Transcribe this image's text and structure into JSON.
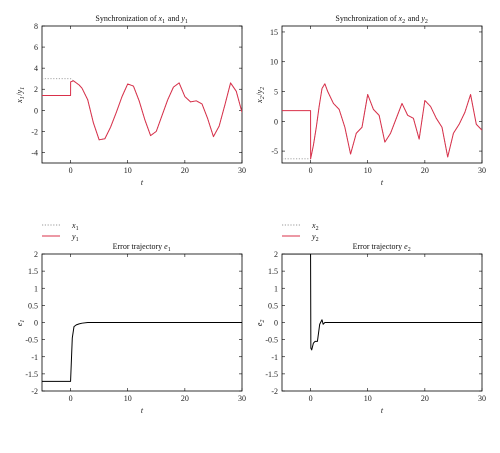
{
  "chart_data": [
    {
      "type": "line",
      "title": "Synchronization of x1 and y1",
      "xlabel": "t",
      "ylabel": "x1 / y1",
      "xlim": [
        -5,
        30
      ],
      "ylim": [
        -5,
        8
      ],
      "xticks": [
        0,
        10,
        20,
        30
      ],
      "yticks": [
        -4,
        -2,
        0,
        2,
        4,
        6,
        8
      ],
      "series": [
        {
          "name": "x1",
          "style": "dotted",
          "color": "#999999",
          "x": [
            -5,
            0,
            0.5,
            1,
            1.5,
            2,
            3,
            4,
            5,
            6,
            7,
            8,
            9,
            10,
            11,
            12,
            13,
            14,
            15,
            16,
            17,
            18,
            19,
            20,
            21,
            22,
            23,
            24,
            25,
            26,
            27,
            28,
            29,
            30
          ],
          "y": [
            3.0,
            3.0,
            2.8,
            2.6,
            2.4,
            2.1,
            1.0,
            -1.2,
            -2.8,
            -2.7,
            -1.6,
            -0.2,
            1.3,
            2.5,
            2.3,
            0.9,
            -0.9,
            -2.4,
            -2.0,
            -0.5,
            1.0,
            2.2,
            2.6,
            1.3,
            0.8,
            0.9,
            0.6,
            -0.8,
            -2.5,
            -1.5,
            0.5,
            2.6,
            1.8,
            -0.2
          ]
        },
        {
          "name": "y1",
          "style": "solid",
          "color": "#d9304a",
          "x": [
            -5,
            0,
            0.01,
            0.5,
            1,
            1.5,
            2,
            3,
            4,
            5,
            6,
            7,
            8,
            9,
            10,
            11,
            12,
            13,
            14,
            15,
            16,
            17,
            18,
            19,
            20,
            21,
            22,
            23,
            24,
            25,
            26,
            27,
            28,
            29,
            30
          ],
          "y": [
            1.4,
            1.4,
            2.7,
            2.8,
            2.6,
            2.4,
            2.1,
            1.0,
            -1.2,
            -2.8,
            -2.7,
            -1.6,
            -0.2,
            1.3,
            2.5,
            2.3,
            0.9,
            -0.9,
            -2.4,
            -2.0,
            -0.5,
            1.0,
            2.2,
            2.6,
            1.3,
            0.8,
            0.9,
            0.6,
            -0.8,
            -2.5,
            -1.5,
            0.5,
            2.6,
            1.8,
            -0.2
          ]
        }
      ]
    },
    {
      "type": "line",
      "title": "Synchronization of x2 and y2",
      "xlabel": "t",
      "ylabel": "x2 / y2",
      "xlim": [
        -5,
        30
      ],
      "ylim": [
        -7,
        16
      ],
      "xticks": [
        0,
        10,
        20,
        30
      ],
      "yticks": [
        -5,
        0,
        5,
        10,
        15
      ],
      "series": [
        {
          "name": "x2",
          "style": "dotted",
          "color": "#999999",
          "x": [
            -5,
            0,
            0.5,
            1,
            1.5,
            2,
            2.5,
            3,
            4,
            5,
            6,
            7,
            8,
            9,
            10,
            11,
            12,
            13,
            14,
            15,
            16,
            17,
            18,
            19,
            20,
            21,
            22,
            23,
            24,
            25,
            26,
            27,
            28,
            29,
            30
          ],
          "y": [
            -6.3,
            -6.3,
            -4.0,
            -1.0,
            2.5,
            5.5,
            6.3,
            5.0,
            3.0,
            2.0,
            -1.0,
            -5.5,
            -2.0,
            -1.0,
            4.5,
            2.0,
            1.0,
            -3.5,
            -2.0,
            0.5,
            3.0,
            1.0,
            0.5,
            -3.0,
            3.5,
            2.5,
            0.5,
            -1.0,
            -6.0,
            -2.0,
            -0.5,
            1.5,
            4.5,
            -0.5,
            -1.5
          ]
        },
        {
          "name": "y2",
          "style": "solid",
          "color": "#d9304a",
          "x": [
            -5,
            0,
            0.01,
            0.5,
            1,
            1.5,
            2,
            2.5,
            3,
            4,
            5,
            6,
            7,
            8,
            9,
            10,
            11,
            12,
            13,
            14,
            15,
            16,
            17,
            18,
            19,
            20,
            21,
            22,
            23,
            24,
            25,
            26,
            27,
            28,
            29,
            30
          ],
          "y": [
            1.8,
            1.8,
            -6.3,
            -4.0,
            -1.0,
            2.5,
            5.5,
            6.3,
            5.0,
            3.0,
            2.0,
            -1.0,
            -5.5,
            -2.0,
            -1.0,
            4.5,
            2.0,
            1.0,
            -3.5,
            -2.0,
            0.5,
            3.0,
            1.0,
            0.5,
            -3.0,
            3.5,
            2.5,
            0.5,
            -1.0,
            -6.0,
            -2.0,
            -0.5,
            1.5,
            4.5,
            -0.5,
            -1.5
          ]
        }
      ]
    },
    {
      "type": "line",
      "title": "Error trajectory e1",
      "xlabel": "t",
      "ylabel": "e1",
      "xlim": [
        -5,
        30
      ],
      "ylim": [
        -2,
        2
      ],
      "xticks": [
        0,
        10,
        20,
        30
      ],
      "yticks": [
        -2,
        -1.5,
        -1,
        -0.5,
        0,
        0.5,
        1,
        1.5,
        2
      ],
      "series": [
        {
          "name": "",
          "style": "solid",
          "color": "#000000",
          "x": [
            -5,
            -0.05,
            0,
            0.3,
            0.6,
            1,
            1.5,
            2,
            3,
            5,
            30
          ],
          "y": [
            -1.72,
            -1.72,
            -1.72,
            -0.45,
            -0.12,
            -0.07,
            -0.04,
            -0.02,
            0,
            0,
            0
          ]
        }
      ]
    },
    {
      "type": "line",
      "title": "Error trajectory e2",
      "xlabel": "t",
      "ylabel": "e2",
      "xlim": [
        -5,
        30
      ],
      "ylim": [
        -2,
        2
      ],
      "xticks": [
        0,
        10,
        20,
        30
      ],
      "yticks": [
        -2,
        -1.5,
        -1,
        -0.5,
        0,
        0.5,
        1,
        1.5,
        2
      ],
      "series": [
        {
          "name": "",
          "style": "solid",
          "color": "#000000",
          "x": [
            -5,
            -0.05,
            0,
            0.05,
            0.2,
            0.5,
            0.8,
            1.2,
            1.6,
            2.0,
            2.2,
            2.5,
            3,
            5,
            30
          ],
          "y": [
            2.0,
            2.0,
            2.0,
            -0.75,
            -0.8,
            -0.6,
            -0.55,
            -0.55,
            -0.05,
            0.08,
            -0.05,
            0,
            0,
            0,
            0
          ]
        }
      ]
    }
  ],
  "legends": [
    {
      "items": [
        {
          "base": "x",
          "sub": "1",
          "style": "dotted",
          "color": "#999999"
        },
        {
          "base": "y",
          "sub": "1",
          "style": "solid",
          "color": "#d9304a"
        }
      ]
    },
    {
      "items": [
        {
          "base": "x",
          "sub": "2",
          "style": "dotted",
          "color": "#999999"
        },
        {
          "base": "y",
          "sub": "2",
          "style": "solid",
          "color": "#d9304a"
        }
      ]
    }
  ],
  "panel_labels": [
    {
      "title": {
        "pre": "Synchronization of ",
        "a": "x",
        "asub": "1",
        "mid": " and ",
        "b": "y",
        "bsub": "1"
      },
      "ylabel": {
        "a": "x",
        "asub": "1",
        "sep": "/",
        "b": "y",
        "bsub": "1"
      },
      "xlabel": "t"
    },
    {
      "title": {
        "pre": "Synchronization of ",
        "a": "x",
        "asub": "2",
        "mid": " and ",
        "b": "y",
        "bsub": "2"
      },
      "ylabel": {
        "a": "x",
        "asub": "2",
        "sep": "/",
        "b": "y",
        "bsub": "2"
      },
      "xlabel": "t"
    },
    {
      "title": {
        "pre": "Error trajectory ",
        "a": "e",
        "asub": "1",
        "mid": "",
        "b": "",
        "bsub": ""
      },
      "ylabel": {
        "a": "e",
        "asub": "1",
        "sep": "",
        "b": "",
        "bsub": ""
      },
      "xlabel": "t"
    },
    {
      "title": {
        "pre": "Error trajectory ",
        "a": "e",
        "asub": "2",
        "mid": "",
        "b": "",
        "bsub": ""
      },
      "ylabel": {
        "a": "e",
        "asub": "2",
        "sep": "",
        "b": "",
        "bsub": ""
      },
      "xlabel": "t"
    }
  ]
}
